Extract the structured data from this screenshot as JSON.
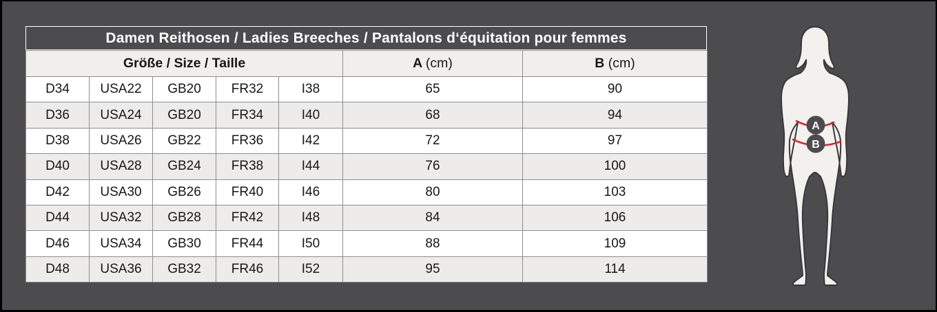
{
  "title": "Damen Reithosen / Ladies Breeches / Pantalons d‘équitation pour femmes",
  "table": {
    "size_header": "Größe / Size / Taille",
    "measure_columns": [
      {
        "letter": "A",
        "unit": "(cm)"
      },
      {
        "letter": "B",
        "unit": "(cm)"
      }
    ],
    "rows": [
      {
        "sizes": [
          "D34",
          "USA22",
          "GB20",
          "FR32",
          "I38"
        ],
        "a": "65",
        "b": "90"
      },
      {
        "sizes": [
          "D36",
          "USA24",
          "GB20",
          "FR34",
          "I40"
        ],
        "a": "68",
        "b": "94"
      },
      {
        "sizes": [
          "D38",
          "USA26",
          "GB22",
          "FR36",
          "I42"
        ],
        "a": "72",
        "b": "97"
      },
      {
        "sizes": [
          "D40",
          "USA28",
          "GB24",
          "FR38",
          "I44"
        ],
        "a": "76",
        "b": "100"
      },
      {
        "sizes": [
          "D42",
          "USA30",
          "GB26",
          "FR40",
          "I46"
        ],
        "a": "80",
        "b": "103"
      },
      {
        "sizes": [
          "D44",
          "USA32",
          "GB28",
          "FR42",
          "I48"
        ],
        "a": "84",
        "b": "106"
      },
      {
        "sizes": [
          "D46",
          "USA34",
          "GB30",
          "FR44",
          "I50"
        ],
        "a": "88",
        "b": "109"
      },
      {
        "sizes": [
          "D48",
          "USA36",
          "GB32",
          "FR46",
          "I52"
        ],
        "a": "95",
        "b": "114"
      }
    ]
  },
  "figure": {
    "badge_a": "A",
    "badge_b": "B"
  },
  "colors": {
    "background": "#4c4c4e",
    "title_text": "#ffffff",
    "header_bg": "#f0efec",
    "row_white": "#ffffff",
    "row_alt": "#edecea",
    "grid": "#8d8d8d",
    "accent_red": "#d42027",
    "silhouette_fill": "#f2f1ee",
    "silhouette_outline": "#38383a"
  },
  "chart_data": {
    "type": "table",
    "title": "Damen Reithosen / Ladies Breeches / Pantalons d‘équitation pour femmes",
    "columns": [
      "D",
      "USA",
      "GB",
      "FR",
      "I",
      "A (cm)",
      "B (cm)"
    ],
    "rows": [
      [
        "D34",
        "USA22",
        "GB20",
        "FR32",
        "I38",
        65,
        90
      ],
      [
        "D36",
        "USA24",
        "GB20",
        "FR34",
        "I40",
        68,
        94
      ],
      [
        "D38",
        "USA26",
        "GB22",
        "FR36",
        "I42",
        72,
        97
      ],
      [
        "D40",
        "USA28",
        "GB24",
        "FR38",
        "I44",
        76,
        100
      ],
      [
        "D42",
        "USA30",
        "GB26",
        "FR40",
        "I46",
        80,
        103
      ],
      [
        "D44",
        "USA32",
        "GB28",
        "FR42",
        "I48",
        84,
        106
      ],
      [
        "D46",
        "USA34",
        "GB30",
        "FR44",
        "I50",
        88,
        109
      ],
      [
        "D48",
        "USA36",
        "GB32",
        "FR46",
        "I52",
        95,
        114
      ]
    ],
    "annotations": [
      "A = waist measurement marker on figure",
      "B = hip measurement marker on figure"
    ]
  }
}
